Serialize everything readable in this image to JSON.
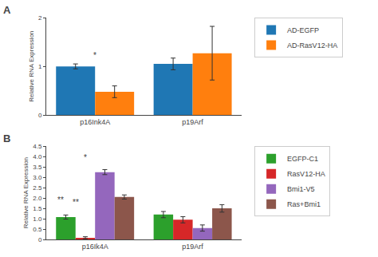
{
  "chart_data": [
    {
      "type": "bar",
      "title": "A",
      "categories": [
        "p16Ink4A",
        "p19Arf"
      ],
      "series": [
        {
          "name": "AD-EGFP",
          "values": [
            1.0,
            1.05
          ],
          "errors": [
            0.05,
            0.12
          ]
        },
        {
          "name": "AD-RasV12-HA",
          "values": [
            0.48,
            1.27
          ],
          "errors": [
            0.12,
            0.55
          ]
        }
      ],
      "ylabel": "Relative RNA Expression",
      "ylim": [
        0,
        2.0
      ],
      "yticks": [
        0,
        1,
        2
      ],
      "grid": false,
      "legend": "right",
      "annotations": [
        {
          "text": "*",
          "category": "p16Ink4A",
          "between": [
            "AD-EGFP",
            "AD-RasV12-HA"
          ],
          "y": 1.1
        }
      ]
    },
    {
      "type": "bar",
      "title": "B",
      "categories": [
        "p16Ik4A",
        "p19Arf"
      ],
      "series": [
        {
          "name": "EGFP-C1",
          "values": [
            1.08,
            1.2
          ],
          "errors": [
            0.1,
            0.15
          ]
        },
        {
          "name": "RasV12-HA",
          "values": [
            0.08,
            0.95
          ],
          "errors": [
            0.05,
            0.15
          ]
        },
        {
          "name": "Bmi1-V5",
          "values": [
            3.25,
            0.55
          ],
          "errors": [
            0.12,
            0.15
          ]
        },
        {
          "name": "Ras+Bmi1",
          "values": [
            2.05,
            1.5
          ],
          "errors": [
            0.1,
            0.18
          ]
        }
      ],
      "ylabel": "Relative RNA Expression",
      "ylim": [
        0,
        4.5
      ],
      "yticks": [
        0,
        0.5,
        {
          "value": 1,
          "label": "1.0"
        },
        1.5,
        {
          "value": 2,
          "label": "2.0"
        },
        2.5,
        {
          "value": 3,
          "label": "3.0"
        },
        3.5,
        {
          "value": 4,
          "label": "4.0"
        },
        4.5
      ],
      "grid": false,
      "legend": "right",
      "annotations": [
        {
          "text": "**",
          "category": "p16Ik4A",
          "between": [
            "EGFP-C1",
            "RasV12-HA"
          ],
          "y": 1.5
        },
        {
          "text": "*",
          "category": "p16Ik4A",
          "between": [
            "EGFP-C1",
            "Bmi1-V5"
          ],
          "y": 3.65
        },
        {
          "text": "**",
          "category": "p16Ik4A",
          "between": [
            "EGFP-C1"
          ],
          "y": 1.6
        }
      ]
    }
  ]
}
